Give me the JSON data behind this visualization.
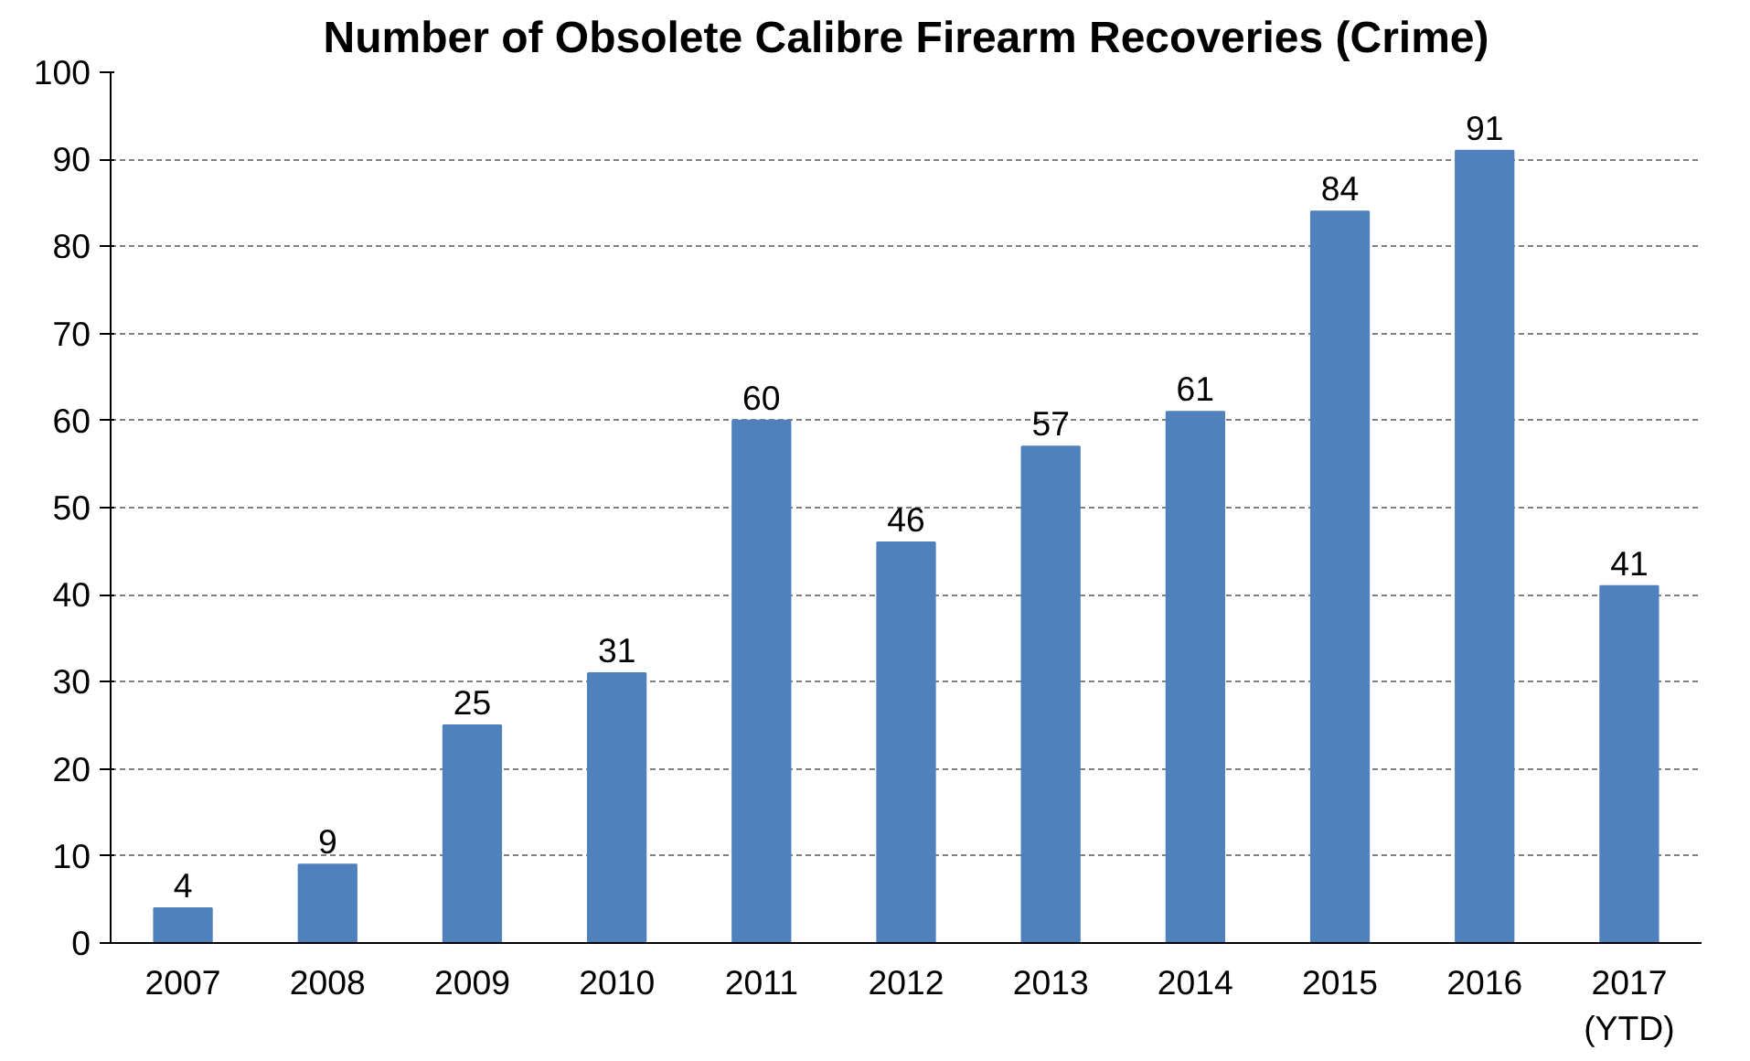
{
  "chart_data": {
    "type": "bar",
    "title": "Number of Obsolete Calibre Firearm Recoveries (Crime)",
    "categories": [
      "2007",
      "2008",
      "2009",
      "2010",
      "2011",
      "2012",
      "2013",
      "2014",
      "2015",
      "2016",
      "2017\n(YTD)"
    ],
    "values": [
      4,
      9,
      25,
      31,
      60,
      46,
      57,
      61,
      84,
      91,
      41
    ],
    "color": "#4f81bd",
    "ylim": [
      0,
      100
    ],
    "yticks": [
      0,
      10,
      20,
      30,
      40,
      50,
      60,
      70,
      80,
      90,
      100
    ],
    "grid": "y",
    "data_labels": true
  }
}
